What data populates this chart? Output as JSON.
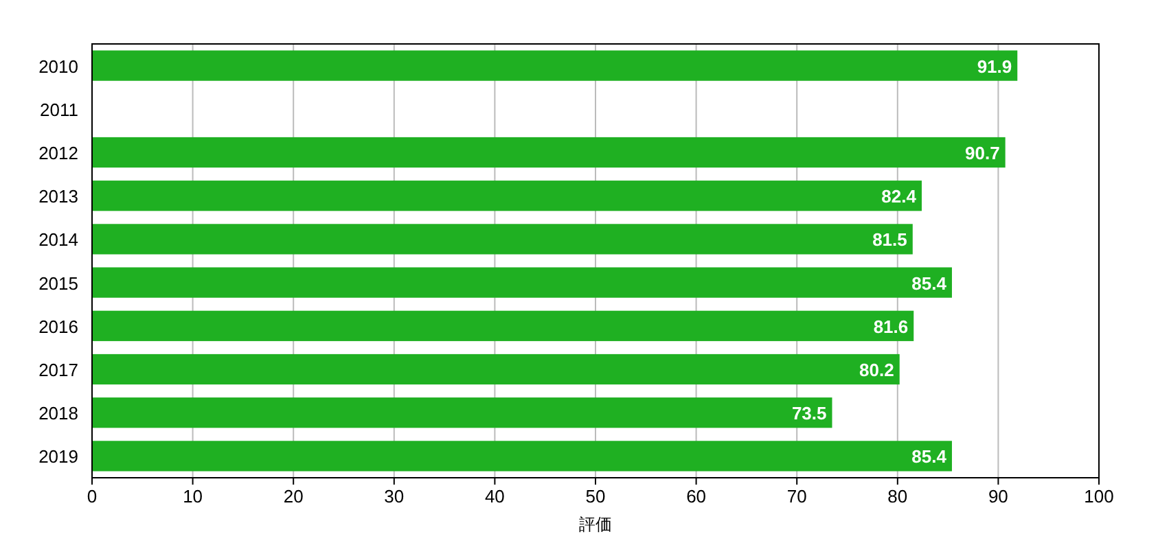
{
  "chart_data": {
    "type": "bar",
    "orientation": "horizontal",
    "xlabel": "評価",
    "categories": [
      "2010",
      "2011",
      "2012",
      "2013",
      "2014",
      "2015",
      "2016",
      "2017",
      "2018",
      "2019"
    ],
    "values": [
      91.9,
      null,
      90.7,
      82.4,
      81.5,
      85.4,
      81.6,
      80.2,
      73.5,
      85.4
    ],
    "color": "#1fb022",
    "xlim": [
      0,
      100
    ],
    "xticks": [
      0,
      10,
      20,
      30,
      40,
      50,
      60,
      70,
      80,
      90,
      100
    ],
    "grid": "x",
    "data_labels": true
  }
}
